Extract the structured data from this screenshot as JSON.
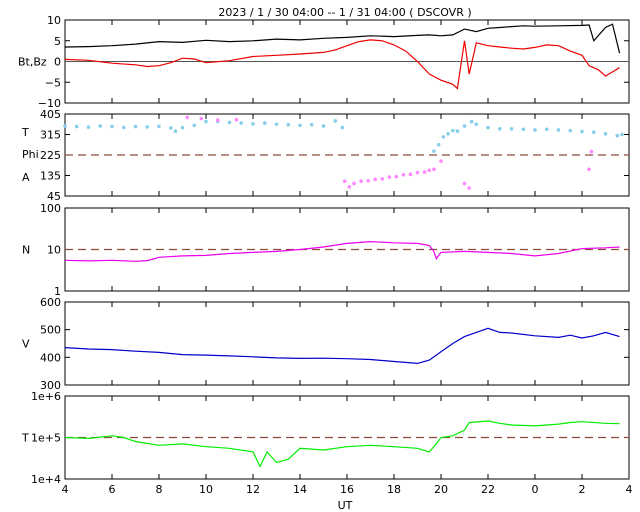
{
  "title": "2023 /   1 / 30   04:00 -- 1 / 31   04:00 ( DSCOVR )",
  "xlabel": "UT",
  "x_ticks": [
    "4",
    "6",
    "8",
    "10",
    "12",
    "14",
    "16",
    "18",
    "20",
    "22",
    "0",
    "2",
    "4"
  ],
  "chart_data": [
    {
      "type": "line",
      "ylabel": "Bt,Bz",
      "ylim": [
        -10,
        10
      ],
      "yticks": [
        "10",
        "5",
        "0",
        "−5",
        "−10"
      ],
      "reference_line": 0,
      "series": [
        {
          "name": "Bt",
          "color": "#000000",
          "points": [
            [
              4,
              3.5
            ],
            [
              5,
              3.6
            ],
            [
              6,
              3.8
            ],
            [
              7,
              4.2
            ],
            [
              8,
              4.8
            ],
            [
              9,
              4.6
            ],
            [
              10,
              5.1
            ],
            [
              11,
              4.8
            ],
            [
              12,
              5.0
            ],
            [
              13,
              5.4
            ],
            [
              14,
              5.2
            ],
            [
              15,
              5.6
            ],
            [
              16,
              5.8
            ],
            [
              17,
              6.2
            ],
            [
              18,
              6.0
            ],
            [
              19,
              6.3
            ],
            [
              19.5,
              6.4
            ],
            [
              20,
              6.2
            ],
            [
              20.5,
              6.4
            ],
            [
              21,
              7.8
            ],
            [
              21.5,
              7.2
            ],
            [
              22,
              8.0
            ],
            [
              22.5,
              8.2
            ],
            [
              23,
              8.4
            ],
            [
              23.5,
              8.6
            ],
            [
              24,
              8.5
            ],
            [
              25,
              8.6
            ],
            [
              26,
              8.7
            ],
            [
              26.3,
              8.8
            ],
            [
              26.5,
              5.0
            ],
            [
              27,
              8.2
            ],
            [
              27.3,
              9.0
            ],
            [
              27.6,
              2.0
            ]
          ]
        },
        {
          "name": "Bz",
          "color": "#ee0000",
          "points": [
            [
              4,
              0.5
            ],
            [
              5,
              0.3
            ],
            [
              6,
              -0.4
            ],
            [
              7,
              -0.8
            ],
            [
              7.5,
              -1.2
            ],
            [
              8,
              -1.0
            ],
            [
              8.5,
              -0.3
            ],
            [
              9,
              0.8
            ],
            [
              9.5,
              0.6
            ],
            [
              10,
              -0.3
            ],
            [
              11,
              0.2
            ],
            [
              12,
              1.2
            ],
            [
              13,
              1.5
            ],
            [
              14,
              1.8
            ],
            [
              15,
              2.2
            ],
            [
              15.5,
              2.8
            ],
            [
              16,
              3.8
            ],
            [
              16.5,
              4.8
            ],
            [
              17,
              5.2
            ],
            [
              17.5,
              5.0
            ],
            [
              18,
              4.0
            ],
            [
              18.5,
              2.5
            ],
            [
              19,
              0.0
            ],
            [
              19.5,
              -3.0
            ],
            [
              20,
              -4.5
            ],
            [
              20.5,
              -5.5
            ],
            [
              20.7,
              -6.5
            ],
            [
              21,
              5.0
            ],
            [
              21.2,
              -3.0
            ],
            [
              21.5,
              4.5
            ],
            [
              22,
              3.8
            ],
            [
              22.5,
              3.5
            ],
            [
              23,
              3.2
            ],
            [
              23.5,
              3.0
            ],
            [
              24,
              3.4
            ],
            [
              24.5,
              4.0
            ],
            [
              25,
              3.8
            ],
            [
              25.5,
              2.5
            ],
            [
              26,
              1.5
            ],
            [
              26.3,
              -1.0
            ],
            [
              26.7,
              -2.0
            ],
            [
              27,
              -3.5
            ],
            [
              27.3,
              -2.5
            ],
            [
              27.6,
              -1.5
            ]
          ]
        }
      ]
    },
    {
      "type": "scatter",
      "ylabel": [
        "T",
        "Phi",
        "A"
      ],
      "ylim": [
        45,
        405
      ],
      "yticks": [
        "405",
        "315",
        "225",
        "135",
        "45"
      ],
      "reference_line": 225,
      "series": [
        {
          "name": "Phi",
          "color": "#87ceeb",
          "points": [
            [
              4.0,
              352
            ],
            [
              4.5,
              350
            ],
            [
              5.0,
              347
            ],
            [
              5.5,
              352
            ],
            [
              6.0,
              350
            ],
            [
              6.5,
              346
            ],
            [
              7.0,
              350
            ],
            [
              7.5,
              348
            ],
            [
              8.0,
              351
            ],
            [
              8.5,
              344
            ],
            [
              8.7,
              330
            ],
            [
              9.0,
              345
            ],
            [
              9.5,
              355
            ],
            [
              10.0,
              372
            ],
            [
              10.5,
              372
            ],
            [
              11.0,
              368
            ],
            [
              11.5,
              365
            ],
            [
              12.0,
              362
            ],
            [
              12.5,
              365
            ],
            [
              13.0,
              360
            ],
            [
              13.5,
              358
            ],
            [
              14.0,
              355
            ],
            [
              14.5,
              358
            ],
            [
              15.0,
              352
            ],
            [
              15.5,
              375
            ],
            [
              15.8,
              346
            ],
            [
              19.7,
              242
            ],
            [
              19.9,
              270
            ],
            [
              20.1,
              305
            ],
            [
              20.3,
              318
            ],
            [
              20.5,
              332
            ],
            [
              20.7,
              330
            ],
            [
              21.0,
              352
            ],
            [
              21.3,
              372
            ],
            [
              21.5,
              360
            ],
            [
              22.0,
              345
            ],
            [
              22.5,
              340
            ],
            [
              23.0,
              340
            ],
            [
              23.5,
              338
            ],
            [
              24.0,
              335
            ],
            [
              24.5,
              338
            ],
            [
              25.0,
              335
            ],
            [
              25.5,
              332
            ],
            [
              26.0,
              328
            ],
            [
              26.5,
              325
            ],
            [
              27.0,
              318
            ],
            [
              27.5,
              310
            ],
            [
              27.7,
              315
            ]
          ]
        },
        {
          "name": "A",
          "color": "#ff88ff",
          "points": [
            [
              15.9,
              110
            ],
            [
              16.1,
              85
            ],
            [
              16.3,
              100
            ],
            [
              16.6,
              110
            ],
            [
              16.9,
              112
            ],
            [
              17.2,
              118
            ],
            [
              17.5,
              120
            ],
            [
              17.8,
              128
            ],
            [
              18.1,
              130
            ],
            [
              18.4,
              138
            ],
            [
              18.7,
              140
            ],
            [
              19.0,
              148
            ],
            [
              19.3,
              150
            ],
            [
              19.5,
              158
            ],
            [
              19.7,
              162
            ],
            [
              20.0,
              198
            ],
            [
              21.0,
              100
            ],
            [
              21.2,
              80
            ],
            [
              26.3,
              162
            ],
            [
              26.4,
              240
            ],
            [
              9.2,
              390
            ],
            [
              9.8,
              385
            ],
            [
              10.5,
              378
            ],
            [
              11.3,
              380
            ]
          ]
        }
      ]
    },
    {
      "type": "line",
      "ylabel": "N",
      "log": true,
      "ylim": [
        1,
        100
      ],
      "yticks": [
        "100",
        "10",
        "1"
      ],
      "reference_line": 10,
      "series": [
        {
          "name": "N",
          "color": "#ee00ee",
          "points": [
            [
              4,
              5.5
            ],
            [
              5,
              5.3
            ],
            [
              6,
              5.5
            ],
            [
              7,
              5.2
            ],
            [
              7.5,
              5.4
            ],
            [
              8,
              6.5
            ],
            [
              9,
              7.0
            ],
            [
              10,
              7.2
            ],
            [
              11,
              8.0
            ],
            [
              12,
              8.5
            ],
            [
              13,
              9.0
            ],
            [
              14,
              10.0
            ],
            [
              15,
              11.5
            ],
            [
              16,
              14.0
            ],
            [
              17,
              15.5
            ],
            [
              18,
              14.5
            ],
            [
              19,
              14.0
            ],
            [
              19.5,
              12.5
            ],
            [
              19.7,
              9.0
            ],
            [
              19.8,
              6.0
            ],
            [
              20,
              8.5
            ],
            [
              21,
              9.0
            ],
            [
              22,
              8.5
            ],
            [
              23,
              8.0
            ],
            [
              24,
              7.0
            ],
            [
              25,
              8.0
            ],
            [
              26,
              10.5
            ],
            [
              27,
              11.0
            ],
            [
              27.6,
              11.5
            ]
          ]
        }
      ]
    },
    {
      "type": "line",
      "ylabel": "V",
      "ylim": [
        300,
        600
      ],
      "yticks": [
        "600",
        "500",
        "400",
        "300"
      ],
      "series": [
        {
          "name": "V",
          "color": "#0000cc",
          "points": [
            [
              4,
              435
            ],
            [
              5,
              430
            ],
            [
              6,
              428
            ],
            [
              7,
              422
            ],
            [
              8,
              418
            ],
            [
              9,
              410
            ],
            [
              10,
              408
            ],
            [
              11,
              405
            ],
            [
              12,
              402
            ],
            [
              13,
              398
            ],
            [
              14,
              396
            ],
            [
              15,
              397
            ],
            [
              16,
              395
            ],
            [
              17,
              392
            ],
            [
              18,
              385
            ],
            [
              19,
              378
            ],
            [
              19.5,
              390
            ],
            [
              20,
              420
            ],
            [
              20.5,
              450
            ],
            [
              21,
              475
            ],
            [
              21.5,
              490
            ],
            [
              22,
              505
            ],
            [
              22.5,
              490
            ],
            [
              23,
              488
            ],
            [
              24,
              478
            ],
            [
              25,
              472
            ],
            [
              25.5,
              480
            ],
            [
              26,
              470
            ],
            [
              26.5,
              478
            ],
            [
              27,
              490
            ],
            [
              27.6,
              475
            ]
          ]
        }
      ]
    },
    {
      "type": "line",
      "ylabel": "T",
      "log": true,
      "ylim": [
        10000,
        1000000
      ],
      "yticks": [
        "1e+6",
        "1e+5",
        "1e+4"
      ],
      "reference_line": 100000,
      "series": [
        {
          "name": "T",
          "color": "#00ee00",
          "points": [
            [
              4,
              100000
            ],
            [
              5,
              95000
            ],
            [
              6,
              110000
            ],
            [
              6.5,
              100000
            ],
            [
              7,
              80000
            ],
            [
              8,
              65000
            ],
            [
              9,
              70000
            ],
            [
              10,
              60000
            ],
            [
              11,
              55000
            ],
            [
              12,
              45000
            ],
            [
              12.3,
              20000
            ],
            [
              12.6,
              45000
            ],
            [
              13,
              25000
            ],
            [
              13.5,
              30000
            ],
            [
              14,
              55000
            ],
            [
              15,
              50000
            ],
            [
              16,
              60000
            ],
            [
              17,
              65000
            ],
            [
              18,
              60000
            ],
            [
              19,
              55000
            ],
            [
              19.5,
              45000
            ],
            [
              19.8,
              70000
            ],
            [
              20,
              100000
            ],
            [
              20.5,
              110000
            ],
            [
              21,
              150000
            ],
            [
              21.2,
              230000
            ],
            [
              22,
              250000
            ],
            [
              22.5,
              220000
            ],
            [
              23,
              200000
            ],
            [
              24,
              190000
            ],
            [
              25,
              210000
            ],
            [
              25.5,
              230000
            ],
            [
              26,
              240000
            ],
            [
              27,
              220000
            ],
            [
              27.6,
              215000
            ]
          ]
        }
      ]
    }
  ]
}
